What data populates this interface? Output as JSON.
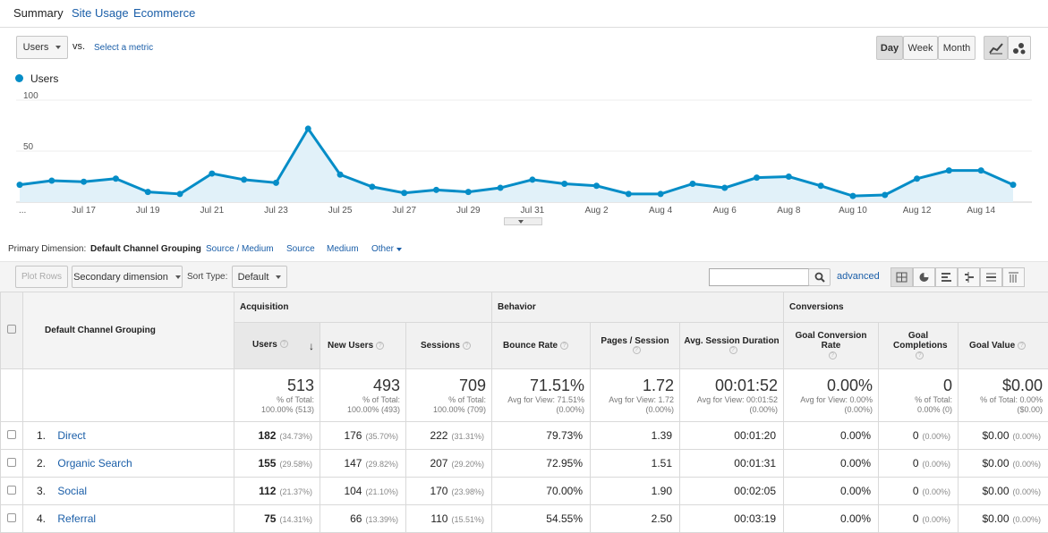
{
  "tabs": {
    "summary": "Summary",
    "site_usage": "Site Usage",
    "ecommerce": "Ecommerce"
  },
  "controls": {
    "metric": "Users",
    "vs": "vs.",
    "select_metric": "Select a metric",
    "day": "Day",
    "week": "Week",
    "month": "Month"
  },
  "legend": {
    "series_name": "Users",
    "color": "#058dc7"
  },
  "chart_data": {
    "type": "line",
    "x": [
      "Jul 15",
      "Jul 16",
      "Jul 17",
      "Jul 18",
      "Jul 19",
      "Jul 20",
      "Jul 21",
      "Jul 22",
      "Jul 23",
      "Jul 24",
      "Jul 25",
      "Jul 26",
      "Jul 27",
      "Jul 28",
      "Jul 29",
      "Jul 30",
      "Jul 31",
      "Aug 1",
      "Aug 2",
      "Aug 3",
      "Aug 4",
      "Aug 5",
      "Aug 6",
      "Aug 7",
      "Aug 8",
      "Aug 9",
      "Aug 10",
      "Aug 11",
      "Aug 12",
      "Aug 13",
      "Aug 14",
      "Aug 15"
    ],
    "series": [
      {
        "name": "Users",
        "values": [
          17,
          21,
          20,
          23,
          10,
          8,
          28,
          22,
          19,
          72,
          27,
          15,
          9,
          12,
          10,
          14,
          22,
          18,
          16,
          8,
          8,
          18,
          14,
          24,
          25,
          16,
          6,
          7,
          23,
          31,
          31,
          17
        ]
      }
    ],
    "y_ticks": [
      "100",
      "50"
    ],
    "x_tick_labels": [
      "...",
      "Jul 17",
      "Jul 19",
      "Jul 21",
      "Jul 23",
      "Jul 25",
      "Jul 27",
      "Jul 29",
      "Jul 31",
      "Aug 2",
      "Aug 4",
      "Aug 6",
      "Aug 8",
      "Aug 10",
      "Aug 12",
      "Aug 14"
    ],
    "ylim": [
      0,
      100
    ],
    "line_color": "#058dc7",
    "fill_color": "#e1f1f9"
  },
  "dimension": {
    "label": "Primary Dimension:",
    "active": "Default Channel Grouping",
    "options": [
      "Source / Medium",
      "Source",
      "Medium",
      "Other"
    ]
  },
  "toolbar": {
    "plot_rows": "Plot Rows",
    "secondary": "Secondary dimension",
    "sort_type_label": "Sort Type:",
    "sort_value": "Default",
    "advanced": "advanced"
  },
  "table": {
    "first_col": "Default Channel Grouping",
    "groups": [
      "Acquisition",
      "Behavior",
      "Conversions"
    ],
    "columns": [
      "Users",
      "New Users",
      "Sessions",
      "Bounce Rate",
      "Pages / Session",
      "Avg. Session Duration",
      "Goal Conversion Rate",
      "Goal Completions",
      "Goal Value"
    ],
    "totals": [
      {
        "big": "513",
        "s1": "% of Total:",
        "s2": "100.00% (513)"
      },
      {
        "big": "493",
        "s1": "% of Total:",
        "s2": "100.00% (493)"
      },
      {
        "big": "709",
        "s1": "% of Total:",
        "s2": "100.00% (709)"
      },
      {
        "big": "71.51%",
        "s1": "Avg for View: 71.51%",
        "s2": "(0.00%)"
      },
      {
        "big": "1.72",
        "s1": "Avg for View: 1.72",
        "s2": "(0.00%)"
      },
      {
        "big": "00:01:52",
        "s1": "Avg for View: 00:01:52",
        "s2": "(0.00%)"
      },
      {
        "big": "0.00%",
        "s1": "Avg for View: 0.00%",
        "s2": "(0.00%)"
      },
      {
        "big": "0",
        "s1": "% of Total:",
        "s2": "0.00% (0)"
      },
      {
        "big": "$0.00",
        "s1": "% of Total: 0.00%",
        "s2": "($0.00)"
      }
    ],
    "rows": [
      {
        "idx": "1.",
        "name": "Direct",
        "users": "182",
        "users_pct": "(34.73%)",
        "new": "176",
        "new_pct": "(35.70%)",
        "sessions": "222",
        "sessions_pct": "(31.31%)",
        "bounce": "79.73%",
        "pages": "1.39",
        "duration": "00:01:20",
        "conv": "0.00%",
        "comp": "0",
        "comp_pct": "(0.00%)",
        "value": "$0.00",
        "value_pct": "(0.00%)"
      },
      {
        "idx": "2.",
        "name": "Organic Search",
        "users": "155",
        "users_pct": "(29.58%)",
        "new": "147",
        "new_pct": "(29.82%)",
        "sessions": "207",
        "sessions_pct": "(29.20%)",
        "bounce": "72.95%",
        "pages": "1.51",
        "duration": "00:01:31",
        "conv": "0.00%",
        "comp": "0",
        "comp_pct": "(0.00%)",
        "value": "$0.00",
        "value_pct": "(0.00%)"
      },
      {
        "idx": "3.",
        "name": "Social",
        "users": "112",
        "users_pct": "(21.37%)",
        "new": "104",
        "new_pct": "(21.10%)",
        "sessions": "170",
        "sessions_pct": "(23.98%)",
        "bounce": "70.00%",
        "pages": "1.90",
        "duration": "00:02:05",
        "conv": "0.00%",
        "comp": "0",
        "comp_pct": "(0.00%)",
        "value": "$0.00",
        "value_pct": "(0.00%)"
      },
      {
        "idx": "4.",
        "name": "Referral",
        "users": "75",
        "users_pct": "(14.31%)",
        "new": "66",
        "new_pct": "(13.39%)",
        "sessions": "110",
        "sessions_pct": "(15.51%)",
        "bounce": "54.55%",
        "pages": "2.50",
        "duration": "00:03:19",
        "conv": "0.00%",
        "comp": "0",
        "comp_pct": "(0.00%)",
        "value": "$0.00",
        "value_pct": "(0.00%)"
      }
    ]
  }
}
